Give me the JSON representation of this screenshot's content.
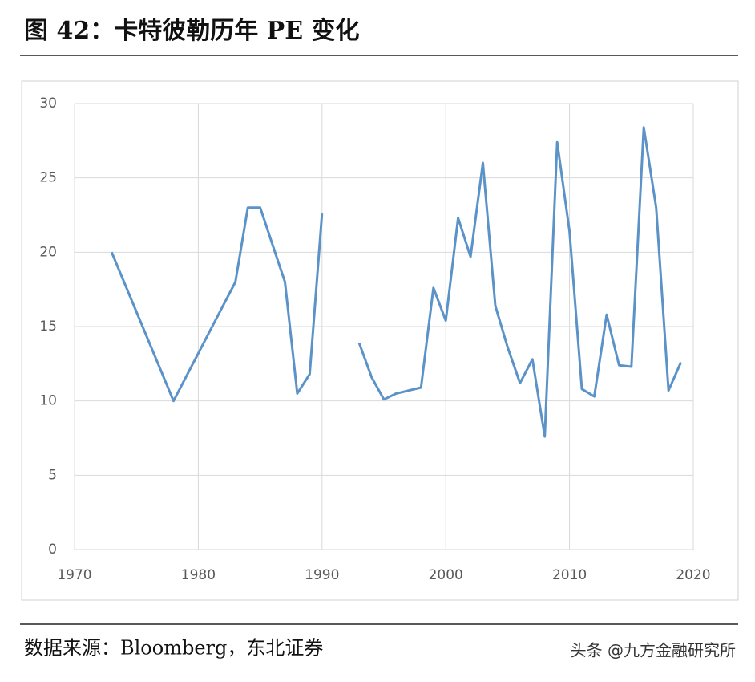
{
  "chart_data": {
    "type": "line",
    "title": "图 42：卡特彼勒历年 PE 变化",
    "source": "数据来源：Bloomberg，东北证券",
    "watermark": "头条 @九方金融研究所",
    "x": [
      1973,
      1978,
      1983,
      1984,
      1985,
      1987,
      1988,
      1989,
      1990,
      1991,
      1992,
      1993,
      1994,
      1995,
      1996,
      1997,
      1998,
      1999,
      2000,
      2001,
      2002,
      2003,
      2004,
      2005,
      2006,
      2007,
      2008,
      2009,
      2010,
      2011,
      2012,
      2013,
      2014,
      2015,
      2016,
      2017,
      2018,
      2019
    ],
    "values": [
      20,
      10.0,
      18,
      23,
      23,
      18,
      10.5,
      11.8,
      22.6,
      null,
      null,
      13.9,
      11.6,
      10.1,
      10.5,
      10.7,
      10.9,
      17.6,
      15.4,
      22.3,
      19.7,
      26.0,
      16.4,
      13.6,
      11.2,
      12.8,
      7.6,
      27.4,
      21.4,
      10.8,
      10.3,
      15.8,
      12.4,
      12.3,
      28.4,
      23.0,
      10.7,
      12.6
    ],
    "color": "#5b93c8",
    "xlim": [
      1970,
      2020
    ],
    "xticks": [
      1970,
      1980,
      1990,
      2000,
      2010,
      2020
    ],
    "ylim": [
      0,
      30
    ],
    "yticks": [
      0,
      5,
      10,
      15,
      20,
      25,
      30
    ],
    "grid": true
  }
}
